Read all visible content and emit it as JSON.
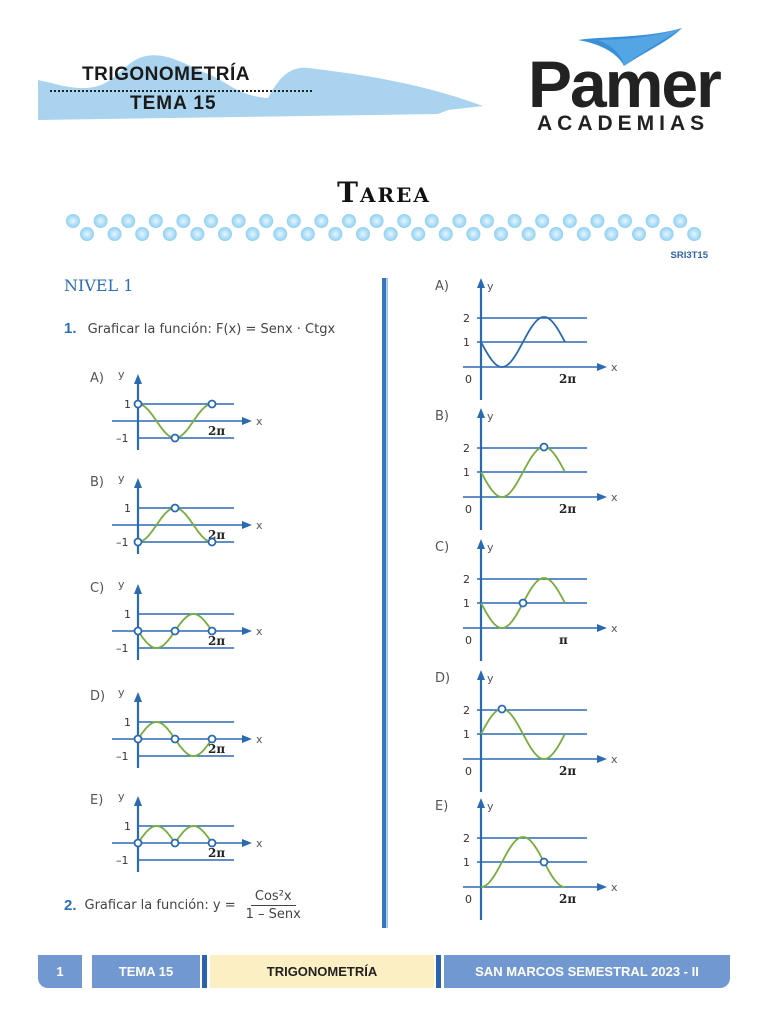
{
  "header": {
    "subject": "TRIGONOMETRÍA",
    "tema": "TEMA 15",
    "logo_name": "Pamer",
    "logo_sub": "ACADEMIAS",
    "banner_color": "#a9d3ee",
    "logo_swoosh_color": "#3b8fd6"
  },
  "page": {
    "title": "Tarea",
    "code": "SRI3T15",
    "bead_color": "#8fd0f2"
  },
  "left_column": {
    "nivel": "NIVEL 1",
    "question1": {
      "number": "1.",
      "text": "Graficar la función: F(x) = Senx · Ctgx"
    },
    "question2": {
      "number": "2.",
      "text": "Graficar la función: y =",
      "numerator": "Cos²x",
      "denominator": "1 – Senx"
    }
  },
  "colors": {
    "axis": "#2a6ab3",
    "curve_green": "#77ad3a",
    "curve_blue": "#2a6ab3",
    "accent": "#2f6db5"
  },
  "chart_data": [
    {
      "type": "line",
      "question": 1,
      "option": "A)",
      "title": "A)",
      "xlabel": "x",
      "ylabel": "y",
      "y_ticks": [
        "1",
        "–1"
      ],
      "x_tick": "2π",
      "ylim": [
        -1,
        1
      ],
      "xlim": [
        0,
        "2π"
      ],
      "description": "cos x from 0 to 2π with open points at (0,1), (π,-1), (2π,1)",
      "open_points": [
        [
          0,
          1
        ],
        [
          3.14,
          -1
        ],
        [
          6.28,
          1
        ]
      ]
    },
    {
      "type": "line",
      "question": 1,
      "option": "B)",
      "title": "B)",
      "xlabel": "x",
      "ylabel": "y",
      "y_ticks": [
        "1",
        "–1"
      ],
      "x_tick": "2π",
      "ylim": [
        -1,
        1
      ],
      "xlim": [
        0,
        "2π"
      ],
      "description": "-cos x from 0 to 2π with open points at (0,-1), (π,1), (2π,-1)",
      "open_points": [
        [
          0,
          -1
        ],
        [
          3.14,
          1
        ],
        [
          6.28,
          -1
        ]
      ]
    },
    {
      "type": "line",
      "question": 1,
      "option": "C)",
      "title": "C)",
      "xlabel": "x",
      "ylabel": "y",
      "y_ticks": [
        "1",
        "–1"
      ],
      "x_tick": "2π",
      "ylim": [
        -1,
        1
      ],
      "xlim": [
        0,
        "2π"
      ],
      "description": "-sin x from 0 to 2π with open points at (0,0), (π,0), (2π,0)",
      "open_points": [
        [
          0,
          0
        ],
        [
          3.14,
          0
        ],
        [
          6.28,
          0
        ]
      ]
    },
    {
      "type": "line",
      "question": 1,
      "option": "D)",
      "title": "D)",
      "xlabel": "x",
      "ylabel": "y",
      "y_ticks": [
        "1",
        "–1"
      ],
      "x_tick": "2π",
      "ylim": [
        -1,
        1
      ],
      "xlim": [
        0,
        "2π"
      ],
      "description": "sin x from 0 to 2π with open points at (0,0), (π,0), (2π,0)",
      "open_points": [
        [
          0,
          0
        ],
        [
          3.14,
          0
        ],
        [
          6.28,
          0
        ]
      ]
    },
    {
      "type": "line",
      "question": 1,
      "option": "E)",
      "title": "E)",
      "xlabel": "x",
      "ylabel": "y",
      "y_ticks": [
        "1",
        "–1"
      ],
      "x_tick": "2π",
      "ylim": [
        -1,
        1
      ],
      "xlim": [
        0,
        "2π"
      ],
      "description": "|sin x| from 0 to 2π with open points at (0,0), (π,0), (2π,0)",
      "open_points": [
        [
          0,
          0
        ],
        [
          3.14,
          0
        ],
        [
          6.28,
          0
        ]
      ]
    },
    {
      "type": "line",
      "question": 2,
      "option": "A)",
      "title": "A)",
      "xlabel": "x",
      "ylabel": "y",
      "y_ticks": [
        "2",
        "1"
      ],
      "x_tick": "2π",
      "origin": "0",
      "ylim": [
        0,
        2
      ],
      "xlim": [
        0,
        "2π"
      ],
      "description": "1 - sin x style curve (blue) from (0,1) down to 0, up to 2, back to 1; no open points",
      "open_points": []
    },
    {
      "type": "line",
      "question": 2,
      "option": "B)",
      "title": "B)",
      "xlabel": "x",
      "ylabel": "y",
      "y_ticks": [
        "2",
        "1"
      ],
      "x_tick": "2π",
      "origin": "0",
      "ylim": [
        0,
        2
      ],
      "xlim": [
        0,
        "2π"
      ],
      "description": "1 - sin x from 0 to 2π with open point at maximum (3π/2, 2)",
      "open_points": [
        [
          4.71,
          2
        ]
      ]
    },
    {
      "type": "line",
      "question": 2,
      "option": "C)",
      "title": "C)",
      "xlabel": "x",
      "ylabel": "y",
      "y_ticks": [
        "2",
        "1"
      ],
      "x_tick": "π",
      "origin": "0",
      "ylim": [
        0,
        2
      ],
      "xlim": [
        0,
        "π"
      ],
      "description": "1 - sin x with open point at (π,1)",
      "open_points": [
        [
          3.14,
          1
        ]
      ]
    },
    {
      "type": "line",
      "question": 2,
      "option": "D)",
      "title": "D)",
      "xlabel": "x",
      "ylabel": "y",
      "y_ticks": [
        "2",
        "1"
      ],
      "x_tick": "2π",
      "origin": "0",
      "ylim": [
        0,
        2
      ],
      "xlim": [
        0,
        "2π"
      ],
      "description": "1 + sin x from 0 to 2π with open point at maximum (π/2, 2)",
      "open_points": [
        [
          1.57,
          2
        ]
      ]
    },
    {
      "type": "line",
      "question": 2,
      "option": "E)",
      "title": "E)",
      "xlabel": "x",
      "ylabel": "y",
      "y_ticks": [
        "2",
        "1"
      ],
      "x_tick": "2π",
      "origin": "0",
      "ylim": [
        0,
        2
      ],
      "xlim": [
        0,
        "2π"
      ],
      "description": "1 - cos x from 0 to 2π with open point at (3π/2, 1)",
      "open_points": [
        [
          4.71,
          1
        ]
      ]
    }
  ],
  "footer": {
    "page_number": "1",
    "tema": "TEMA 15",
    "subject": "TRIGONOMETRÍA",
    "course": "SAN MARCOS SEMESTRAL 2023 - II"
  }
}
